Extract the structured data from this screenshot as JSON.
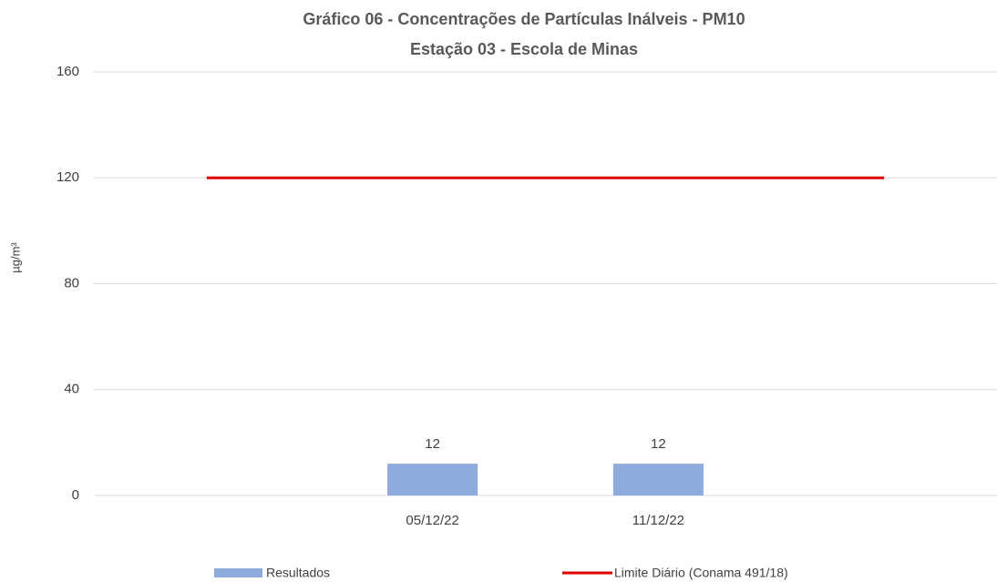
{
  "chart_data": {
    "type": "bar",
    "title": [
      "Gráfico 06  - Concentrações de Partículas Inálveis - PM10",
      "Estação 03 - Escola de Minas"
    ],
    "y_label": "µg/m³",
    "categories": [
      null,
      "05/12/22",
      "11/12/22",
      null
    ],
    "series": [
      {
        "name": "Resultados",
        "type": "bar",
        "color": "#8faadc",
        "values": [
          null,
          12,
          12,
          null
        ]
      },
      {
        "name": "Limite Diário (Conama 491/18)",
        "type": "line",
        "color": "#e00000",
        "values": [
          120,
          120,
          120,
          120
        ]
      }
    ],
    "ylim": [
      0,
      160
    ],
    "yticks": [
      0,
      40,
      80,
      120,
      160
    ],
    "grid": true,
    "legend": "bottom"
  }
}
